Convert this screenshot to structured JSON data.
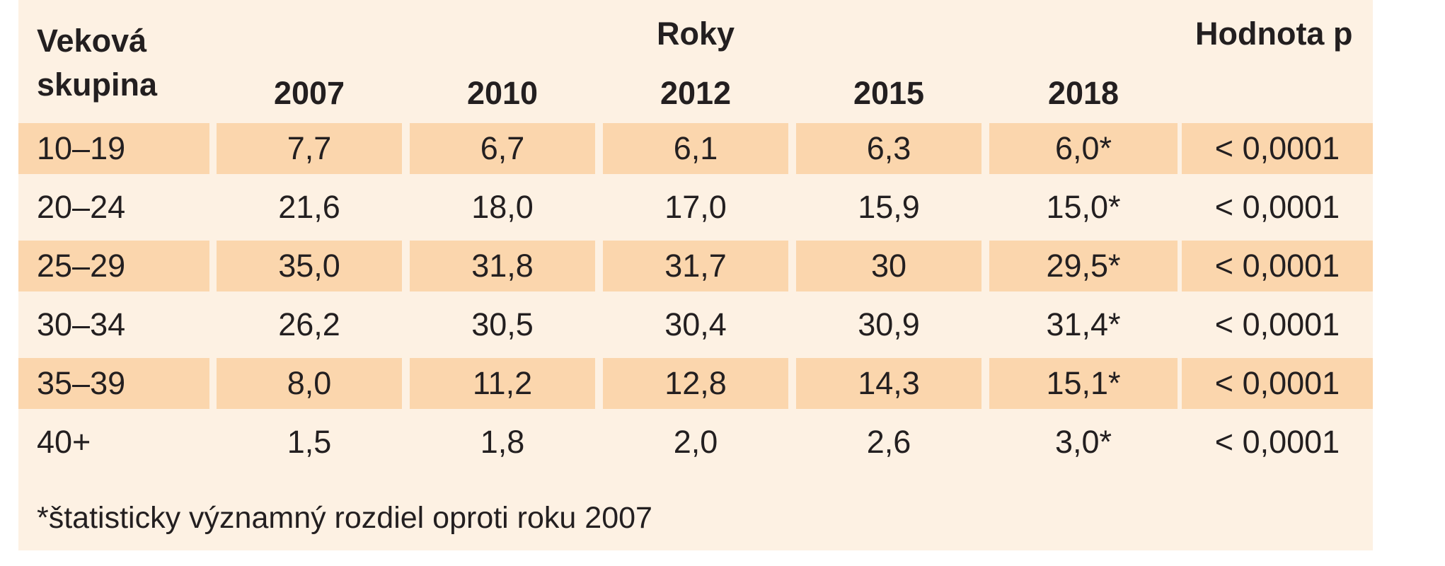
{
  "table": {
    "age_group_header_line1": "Veková",
    "age_group_header_line2": "skupina",
    "years_header": "Roky",
    "p_value_header": "Hodnota p",
    "years": [
      "2007",
      "2010",
      "2012",
      "2015",
      "2018"
    ],
    "rows": [
      {
        "age_group": "10–19",
        "values": [
          "7,7",
          "6,7",
          "6,1",
          "6,3",
          "6,0*"
        ],
        "p_value": "< 0,0001",
        "shaded": true
      },
      {
        "age_group": "20–24",
        "values": [
          "21,6",
          "18,0",
          "17,0",
          "15,9",
          "15,0*"
        ],
        "p_value": "< 0,0001",
        "shaded": false
      },
      {
        "age_group": "25–29",
        "values": [
          "35,0",
          "31,8",
          "31,7",
          "30",
          "29,5*"
        ],
        "p_value": "< 0,0001",
        "shaded": true
      },
      {
        "age_group": "30–34",
        "values": [
          "26,2",
          "30,5",
          "30,4",
          "30,9",
          "31,4*"
        ],
        "p_value": "< 0,0001",
        "shaded": false
      },
      {
        "age_group": "35–39",
        "values": [
          "8,0",
          "11,2",
          "12,8",
          "14,3",
          "15,1*"
        ],
        "p_value": "< 0,0001",
        "shaded": true
      },
      {
        "age_group": "40+",
        "values": [
          "1,5",
          "1,8",
          "2,0",
          "2,6",
          "3,0*"
        ],
        "p_value": "< 0,0001",
        "shaded": false
      }
    ],
    "footnote": "*štatisticky významný rozdiel oproti roku 2007"
  },
  "colors": {
    "panel_background": "#fdf1e3",
    "band_shade": "#fbd6ad",
    "text": "#231f20"
  }
}
